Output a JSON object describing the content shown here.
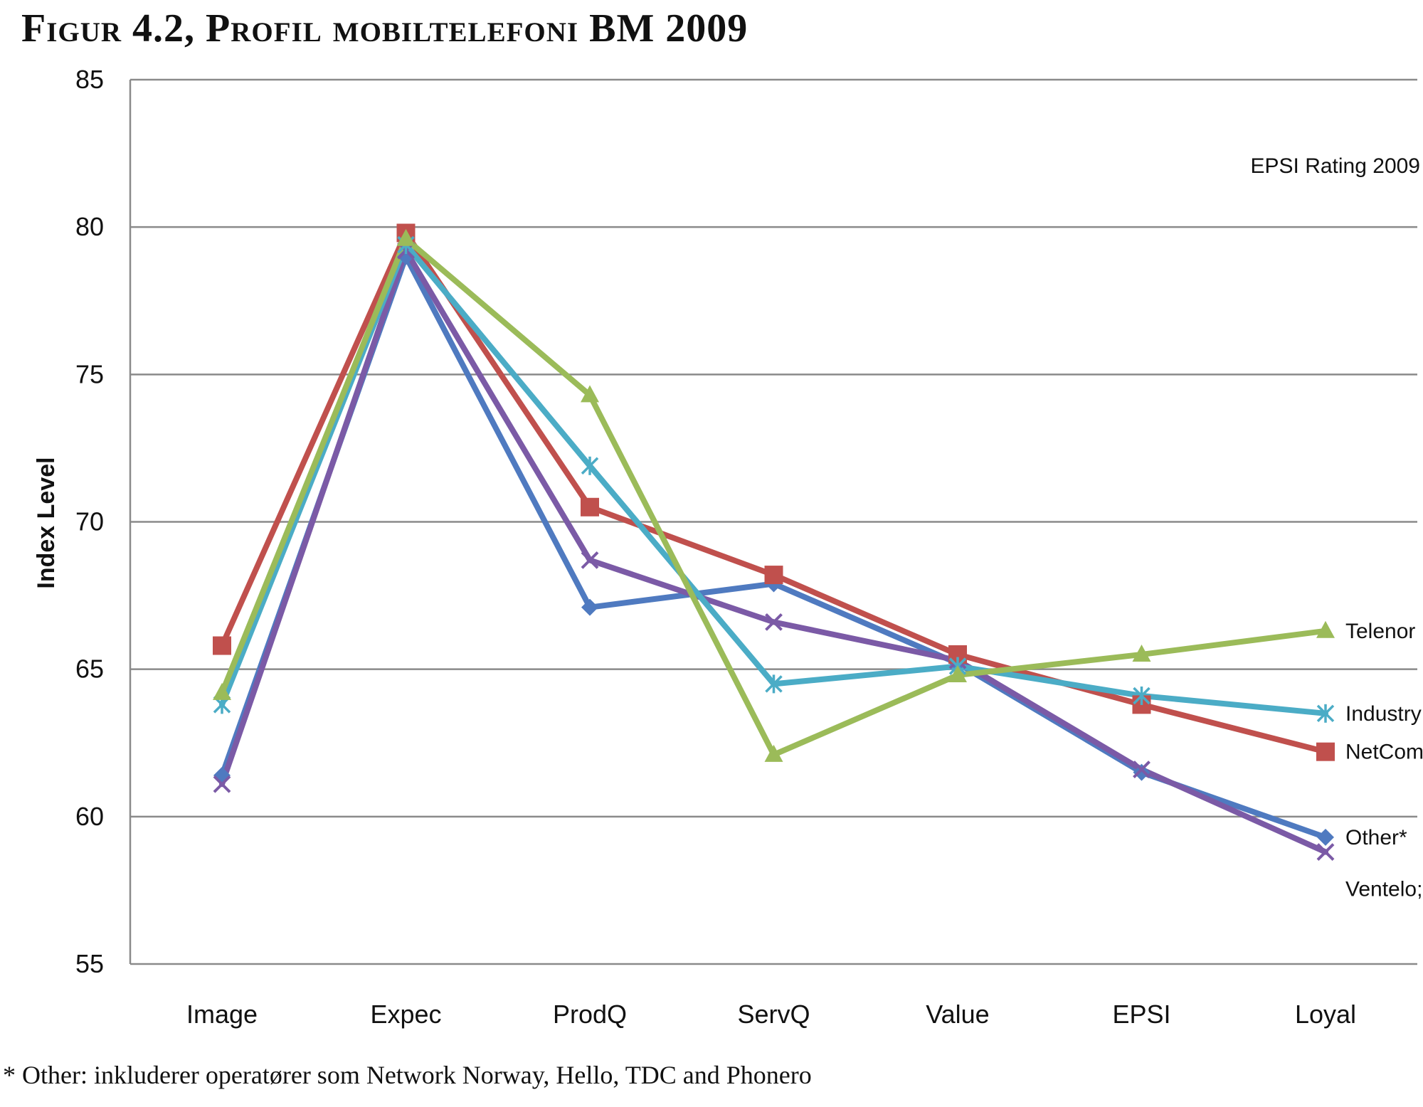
{
  "title": "Figur 4.2, Profil mobiltelefoni BM 2009",
  "footnote": "* Other: inkluderer operatører som Network Norway, Hello, TDC and Phonero",
  "chart_data": {
    "type": "line",
    "categories": [
      "Image",
      "Expec",
      "ProdQ",
      "ServQ",
      "Value",
      "EPSI",
      "Loyal"
    ],
    "ylabel": "Index Level",
    "xlabel": "",
    "ylim": [
      55,
      85
    ],
    "yticks": [
      55,
      60,
      65,
      70,
      75,
      80,
      85
    ],
    "annotation": "EPSI Rating 2009",
    "grid": true,
    "legend": "end-of-line labels",
    "series": [
      {
        "name": "Other*",
        "color": "#4f7ac0",
        "marker": "diamond",
        "values": [
          61.4,
          79.0,
          67.1,
          67.9,
          65.2,
          61.5,
          59.3
        ]
      },
      {
        "name": "Ventelo;",
        "color": "#7b5aa6",
        "marker": "x",
        "values": [
          61.1,
          79.2,
          68.7,
          66.6,
          65.3,
          61.6,
          58.8
        ]
      },
      {
        "name": "NetCom",
        "color": "#c0504d",
        "marker": "square",
        "values": [
          65.8,
          79.8,
          70.5,
          68.2,
          65.5,
          63.8,
          62.2
        ]
      },
      {
        "name": "Industry",
        "color": "#4bacc6",
        "marker": "asterisk",
        "values": [
          63.8,
          79.4,
          71.9,
          64.5,
          65.1,
          64.1,
          63.5
        ]
      },
      {
        "name": "Telenor",
        "color": "#9bbb59",
        "marker": "triangle",
        "values": [
          64.2,
          79.6,
          74.3,
          62.1,
          64.8,
          65.5,
          66.3
        ]
      }
    ]
  }
}
